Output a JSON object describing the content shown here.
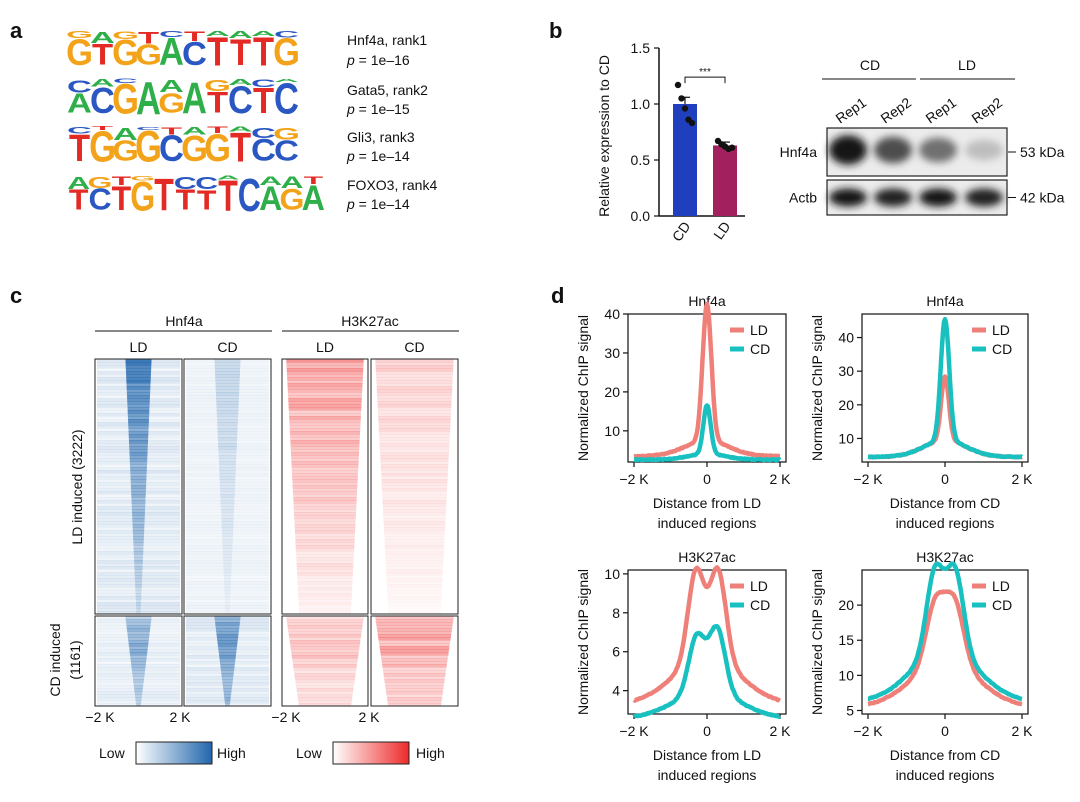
{
  "panel_labels": {
    "a": "a",
    "b": "b",
    "c": "c",
    "d": "d"
  },
  "motifs": {
    "colors": {
      "A": "#2eaf49",
      "C": "#2a57c2",
      "G": "#f3a31a",
      "T": "#e42a24"
    },
    "items": [
      {
        "sequence": "GTGGACTTTG",
        "name_line": "Hnf4a, rank1",
        "p_prefix": "p",
        "p_value": " = 1e–16"
      },
      {
        "sequence": "ACGAGATCTC",
        "name_line": "Gata5, rank2",
        "p_prefix": "p",
        "p_value": " = 1e–15"
      },
      {
        "sequence": "TGGGCGGTCC",
        "name_line": "Gli3, rank3",
        "p_prefix": "p",
        "p_value": " = 1e–14"
      },
      {
        "sequence": "TCTGTTTTCAGA",
        "name_line": "FOXO3, rank4",
        "p_prefix": "p",
        "p_value": " = 1e–14"
      }
    ]
  },
  "chart_data": [
    {
      "id": "b-bar",
      "type": "bar",
      "categories": [
        "CD",
        "LD"
      ],
      "values": [
        1.0,
        0.63
      ],
      "errors": [
        0.06,
        0.03
      ],
      "points": [
        [
          1.17,
          1.05,
          0.96,
          0.86,
          0.83
        ],
        [
          0.67,
          0.64,
          0.62,
          0.6,
          0.61
        ]
      ],
      "colors": [
        "#1f3fbf",
        "#a3205e"
      ],
      "ylabel": "Relative expression to CD",
      "ylim": [
        0,
        1.5
      ],
      "yticks": [
        "0.0",
        "0.5",
        "1.0",
        "1.5"
      ],
      "significance": "***"
    },
    {
      "id": "c-heatmap",
      "type": "heatmap",
      "groups": [
        {
          "label": "Hnf4a",
          "columns": [
            "LD",
            "CD"
          ]
        },
        {
          "label": "H3K27ac",
          "columns": [
            "LD",
            "CD"
          ]
        }
      ],
      "rows": [
        {
          "label": "LD induced (3222)"
        },
        {
          "label": "CD induced",
          "label2": "(1161)"
        }
      ],
      "x_ticks": [
        "−2 K",
        "2 K",
        "−2 K",
        "2 K"
      ],
      "scales": [
        {
          "low": "Low",
          "high": "High",
          "color": "#2166ac"
        },
        {
          "low": "Low",
          "high": "High",
          "color": "#ee2a2a"
        }
      ],
      "intensity": {
        "hnf4a": [
          [
            0.95,
            0.25
          ],
          [
            0.6,
            0.85
          ]
        ],
        "h3k27ac": [
          [
            0.75,
            0.35
          ],
          [
            0.55,
            0.75
          ]
        ]
      }
    },
    {
      "id": "d1",
      "type": "line",
      "title": "Hnf4a",
      "xlabel": "Distance from LD",
      "xlabel2": "induced regions",
      "ylabel": "Normalized ChIP signal",
      "x_ticks": [
        "−2 K",
        "0",
        "2 K"
      ],
      "xlim": [
        -2,
        2
      ],
      "ylim": [
        2,
        40
      ],
      "yticks": [
        10,
        20,
        30,
        40
      ],
      "series": [
        {
          "name": "LD",
          "color": "#ef8079",
          "base": 3.5,
          "peaks": [
            [
              0,
              35,
              0.12
            ],
            [
              0,
              4,
              0.6
            ]
          ]
        },
        {
          "name": "CD",
          "color": "#19c0c0",
          "base": 2.6,
          "peaks": [
            [
              0,
              12.5,
              0.1
            ],
            [
              0,
              1.5,
              0.5
            ]
          ]
        }
      ]
    },
    {
      "id": "d2",
      "type": "line",
      "title": "Hnf4a",
      "xlabel": "Distance from CD",
      "xlabel2": "induced regions",
      "ylabel": "Normalized ChIP signal",
      "x_ticks": [
        "−2 K",
        "0",
        "2 K"
      ],
      "xlim": [
        -2,
        2
      ],
      "ylim": [
        3,
        47
      ],
      "yticks": [
        10,
        20,
        30,
        40
      ],
      "series": [
        {
          "name": "LD",
          "color": "#ef8079",
          "base": 4.5,
          "peaks": [
            [
              0,
              19,
              0.1
            ],
            [
              0,
              5,
              0.55
            ]
          ]
        },
        {
          "name": "CD",
          "color": "#19c0c0",
          "base": 4.5,
          "peaks": [
            [
              0,
              36,
              0.11
            ],
            [
              0,
              5,
              0.55
            ]
          ]
        }
      ]
    },
    {
      "id": "d3",
      "type": "line",
      "title": "H3K27ac",
      "xlabel": "Distance from LD",
      "xlabel2": "induced regions",
      "ylabel": "Normalized ChIP signal",
      "x_ticks": [
        "−2 K",
        "0",
        "2 K"
      ],
      "xlim": [
        -2,
        2
      ],
      "ylim": [
        2.8,
        10.2
      ],
      "yticks": [
        4,
        6,
        8,
        10
      ],
      "series": [
        {
          "name": "LD",
          "color": "#ef8079",
          "base": 3.3,
          "peaks": [
            [
              -0.3,
              4.6,
              0.22
            ],
            [
              0.3,
              4.6,
              0.22
            ],
            [
              0,
              2.4,
              0.9
            ]
          ]
        },
        {
          "name": "CD",
          "color": "#19c0c0",
          "base": 2.55,
          "peaks": [
            [
              -0.28,
              2.9,
              0.22
            ],
            [
              0.28,
              3.3,
              0.22
            ],
            [
              0,
              1.4,
              0.9
            ]
          ]
        }
      ]
    },
    {
      "id": "d4",
      "type": "line",
      "title": "H3K27ac",
      "xlabel": "Distance from CD",
      "xlabel2": "induced regions",
      "ylabel": "Normalized ChIP signal",
      "x_ticks": [
        "−2 K",
        "0",
        "2 K"
      ],
      "xlim": [
        -2,
        2
      ],
      "ylim": [
        4.5,
        25
      ],
      "yticks": [
        5,
        10,
        15,
        20
      ],
      "series": [
        {
          "name": "LD",
          "color": "#ef8079",
          "base": 5.5,
          "peaks": [
            [
              -0.25,
              8.5,
              0.24
            ],
            [
              0.25,
              8.5,
              0.24
            ],
            [
              0,
              6.5,
              0.85
            ]
          ]
        },
        {
          "name": "CD",
          "color": "#19c0c0",
          "base": 6.2,
          "peaks": [
            [
              -0.26,
              11.5,
              0.22
            ],
            [
              0.26,
              11.5,
              0.22
            ],
            [
              0,
              7.5,
              0.85
            ]
          ]
        }
      ]
    }
  ],
  "western": {
    "groups": [
      "CD",
      "LD"
    ],
    "lanes": [
      "Rep1",
      "Rep2",
      "Rep1",
      "Rep2"
    ],
    "blots": [
      {
        "label": "Hnf4a",
        "size": "53 kDa",
        "intensities": [
          0.95,
          0.7,
          0.55,
          0.2
        ]
      },
      {
        "label": "Actb",
        "size": "42 kDa",
        "intensities": [
          0.95,
          0.9,
          0.95,
          0.9
        ]
      }
    ]
  }
}
